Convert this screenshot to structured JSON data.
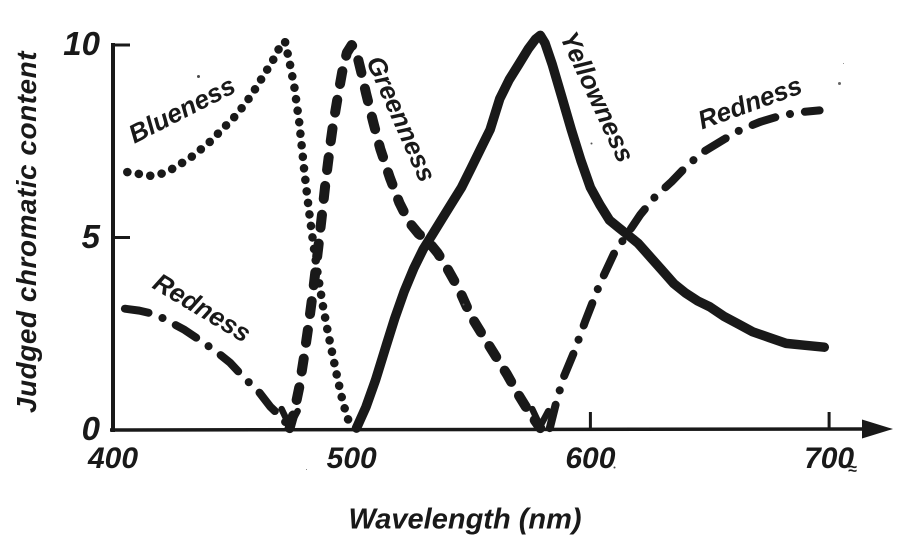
{
  "figure": {
    "y_axis_title": "Judged chromatic content",
    "x_axis_title": "Wavelength (nm)",
    "y_tick_labels": [
      "10",
      "5",
      "0"
    ],
    "x_tick_labels": [
      "400",
      "500",
      "600",
      "700"
    ],
    "approx_mark": "≈",
    "ink_color": "#191919",
    "background_color": "#ffffff"
  },
  "chart_data": {
    "type": "line",
    "title": "",
    "xlabel": "Wavelength (nm)",
    "ylabel": "Judged chromatic content",
    "xlim": [
      400,
      710
    ],
    "ylim": [
      0,
      10.5
    ],
    "x_ticks": [
      400,
      500,
      600,
      700
    ],
    "x_tick_marks_visible": [
      600,
      700
    ],
    "y_ticks": [
      10,
      5,
      0
    ],
    "y_tick_marks_visible": [
      10,
      5
    ],
    "grid": false,
    "legend_position": "labels-on-curves",
    "x_axis_arrow": true,
    "series": [
      {
        "name": "Blueness",
        "label": "Blueness",
        "style": "dotted",
        "end_arrow": false,
        "points": [
          [
            406,
            6.7
          ],
          [
            411,
            6.65
          ],
          [
            416,
            6.6
          ],
          [
            420,
            6.65
          ],
          [
            424,
            6.75
          ],
          [
            428,
            6.9
          ],
          [
            432,
            7.05
          ],
          [
            436,
            7.25
          ],
          [
            440,
            7.45
          ],
          [
            444,
            7.7
          ],
          [
            448,
            7.95
          ],
          [
            452,
            8.2
          ],
          [
            455,
            8.45
          ],
          [
            458,
            8.7
          ],
          [
            461,
            9.0
          ],
          [
            464,
            9.3
          ],
          [
            467,
            9.6
          ],
          [
            469,
            9.85
          ],
          [
            471,
            10.05
          ],
          [
            472,
            10.1
          ],
          [
            474,
            9.55
          ],
          [
            476,
            8.9
          ],
          [
            478,
            8.0
          ],
          [
            480,
            6.8
          ],
          [
            482,
            5.75
          ],
          [
            484,
            4.8
          ],
          [
            486,
            3.95
          ],
          [
            488,
            3.2
          ],
          [
            490,
            2.55
          ],
          [
            492,
            1.95
          ],
          [
            494,
            1.35
          ],
          [
            496,
            0.8
          ],
          [
            498,
            0.35
          ],
          [
            500,
            0.05
          ]
        ]
      },
      {
        "name": "Greenness",
        "label": "Greenness",
        "style": "dashed",
        "end_arrow": true,
        "points": [
          [
            474,
            0.05
          ],
          [
            476,
            0.5
          ],
          [
            478,
            1.1
          ],
          [
            480,
            1.9
          ],
          [
            482,
            2.75
          ],
          [
            484,
            3.7
          ],
          [
            486,
            4.75
          ],
          [
            487,
            5.3
          ],
          [
            488,
            5.85
          ],
          [
            489,
            6.4
          ],
          [
            490,
            6.9
          ],
          [
            491,
            7.4
          ],
          [
            492,
            7.85
          ],
          [
            494,
            8.6
          ],
          [
            496,
            9.3
          ],
          [
            498,
            9.8
          ],
          [
            500,
            10.0
          ],
          [
            502,
            9.8
          ],
          [
            504,
            9.3
          ],
          [
            506,
            8.75
          ],
          [
            509,
            8.0
          ],
          [
            512,
            7.3
          ],
          [
            516,
            6.55
          ],
          [
            520,
            5.9
          ],
          [
            524,
            5.4
          ],
          [
            528,
            5.1
          ],
          [
            532,
            4.9
          ],
          [
            536,
            4.6
          ],
          [
            540,
            4.2
          ],
          [
            545,
            3.65
          ],
          [
            550,
            2.95
          ],
          [
            555,
            2.45
          ],
          [
            560,
            1.95
          ],
          [
            565,
            1.45
          ],
          [
            570,
            0.9
          ],
          [
            575,
            0.4
          ],
          [
            579,
            0.05
          ]
        ]
      },
      {
        "name": "Yellowness",
        "label": "Yellowness",
        "style": "solid",
        "end_arrow": false,
        "points": [
          [
            502,
            0.05
          ],
          [
            506,
            0.6
          ],
          [
            510,
            1.3
          ],
          [
            514,
            2.1
          ],
          [
            518,
            2.9
          ],
          [
            522,
            3.6
          ],
          [
            526,
            4.2
          ],
          [
            530,
            4.7
          ],
          [
            534,
            5.1
          ],
          [
            538,
            5.5
          ],
          [
            542,
            5.9
          ],
          [
            546,
            6.3
          ],
          [
            550,
            6.8
          ],
          [
            554,
            7.3
          ],
          [
            558,
            7.8
          ],
          [
            562,
            8.6
          ],
          [
            566,
            9.1
          ],
          [
            570,
            9.5
          ],
          [
            574,
            9.9
          ],
          [
            577,
            10.15
          ],
          [
            579,
            10.25
          ],
          [
            581,
            10.05
          ],
          [
            584,
            9.5
          ],
          [
            588,
            8.65
          ],
          [
            592,
            7.8
          ],
          [
            596,
            7.0
          ],
          [
            600,
            6.3
          ],
          [
            604,
            5.85
          ],
          [
            608,
            5.45
          ],
          [
            612,
            5.25
          ],
          [
            616,
            5.05
          ],
          [
            620,
            4.85
          ],
          [
            625,
            4.5
          ],
          [
            630,
            4.15
          ],
          [
            635,
            3.8
          ],
          [
            640,
            3.55
          ],
          [
            645,
            3.35
          ],
          [
            650,
            3.2
          ],
          [
            656,
            2.95
          ],
          [
            662,
            2.75
          ],
          [
            668,
            2.55
          ],
          [
            675,
            2.4
          ],
          [
            682,
            2.25
          ],
          [
            690,
            2.2
          ],
          [
            698,
            2.15
          ]
        ]
      },
      {
        "name": "Redness (short-wavelength branch)",
        "label": "Redness",
        "style": "dashdot",
        "end_arrow": true,
        "points": [
          [
            405,
            3.15
          ],
          [
            411,
            3.1
          ],
          [
            418,
            3.0
          ],
          [
            424,
            2.8
          ],
          [
            430,
            2.6
          ],
          [
            436,
            2.35
          ],
          [
            443,
            2.05
          ],
          [
            449,
            1.75
          ],
          [
            455,
            1.35
          ],
          [
            461,
            1.0
          ],
          [
            466,
            0.6
          ],
          [
            471,
            0.3
          ],
          [
            474,
            0.05
          ]
        ]
      },
      {
        "name": "Redness (long-wavelength branch)",
        "label": "Redness",
        "style": "dashdot",
        "end_arrow": false,
        "points": [
          [
            583,
            0.05
          ],
          [
            586,
            0.8
          ],
          [
            589,
            1.4
          ],
          [
            593,
            2.0
          ],
          [
            598,
            2.85
          ],
          [
            604,
            3.8
          ],
          [
            610,
            4.6
          ],
          [
            615,
            5.05
          ],
          [
            621,
            5.6
          ],
          [
            627,
            6.05
          ],
          [
            634,
            6.45
          ],
          [
            641,
            6.9
          ],
          [
            648,
            7.25
          ],
          [
            656,
            7.55
          ],
          [
            663,
            7.8
          ],
          [
            671,
            8.0
          ],
          [
            679,
            8.15
          ],
          [
            687,
            8.25
          ],
          [
            696,
            8.3
          ]
        ]
      }
    ]
  }
}
